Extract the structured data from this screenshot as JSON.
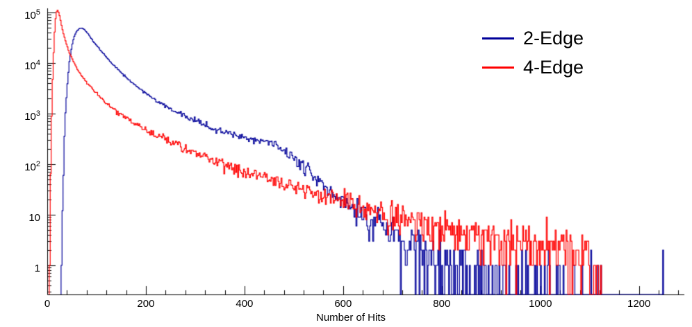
{
  "axes": {
    "xlabel": "Number of Hits",
    "x_ticks": [
      0,
      200,
      400,
      600,
      800,
      1000,
      1200
    ],
    "y_ticks": [
      {
        "base": "1",
        "exp": ""
      },
      {
        "base": "10",
        "exp": ""
      },
      {
        "base": "10",
        "exp": "2"
      },
      {
        "base": "10",
        "exp": "3"
      },
      {
        "base": "10",
        "exp": "4"
      },
      {
        "base": "10",
        "exp": "5"
      }
    ]
  },
  "chart_data": {
    "type": "line",
    "subtype": "step-histogram",
    "title": "",
    "xlabel": "Number of Hits",
    "ylabel": "",
    "yscale": "log",
    "xlim": [
      0,
      1292
    ],
    "ylim": [
      0.27,
      120000
    ],
    "grid": false,
    "legend_position": "top-right",
    "bin_width": 2,
    "noise_model": "poisson",
    "seed": 42,
    "series": [
      {
        "name": "2-Edge",
        "color": "#000099",
        "keypoints": [
          [
            28,
            0.3
          ],
          [
            32,
            30
          ],
          [
            36,
            700
          ],
          [
            40,
            3000
          ],
          [
            45,
            11000
          ],
          [
            50,
            22000
          ],
          [
            55,
            34000
          ],
          [
            60,
            43000
          ],
          [
            65,
            48000
          ],
          [
            70,
            49000
          ],
          [
            75,
            46000
          ],
          [
            80,
            41000
          ],
          [
            90,
            30000
          ],
          [
            100,
            22500
          ],
          [
            110,
            17000
          ],
          [
            120,
            13000
          ],
          [
            135,
            9000
          ],
          [
            150,
            6500
          ],
          [
            170,
            4300
          ],
          [
            200,
            2500
          ],
          [
            225,
            1700
          ],
          [
            250,
            1250
          ],
          [
            275,
            950
          ],
          [
            300,
            730
          ],
          [
            325,
            580
          ],
          [
            350,
            470
          ],
          [
            375,
            390
          ],
          [
            400,
            330
          ],
          [
            420,
            300
          ],
          [
            440,
            290
          ],
          [
            460,
            260
          ],
          [
            480,
            190
          ],
          [
            500,
            130
          ],
          [
            520,
            85
          ],
          [
            540,
            55
          ],
          [
            560,
            38
          ],
          [
            580,
            26
          ],
          [
            600,
            19
          ],
          [
            625,
            13
          ],
          [
            650,
            9
          ],
          [
            675,
            6.5
          ],
          [
            700,
            4.5
          ],
          [
            725,
            3
          ],
          [
            750,
            2.2
          ],
          [
            775,
            1.6
          ],
          [
            800,
            1.2
          ],
          [
            850,
            0.8
          ],
          [
            900,
            0.55
          ],
          [
            950,
            0.4
          ],
          [
            1000,
            0.3
          ],
          [
            1050,
            0.2
          ],
          [
            1100,
            0.12
          ],
          [
            1130,
            0.05
          ],
          [
            1160,
            0.012
          ],
          [
            1200,
            0.012
          ],
          [
            1230,
            0.03
          ],
          [
            1250,
            0.045
          ],
          [
            1270,
            0.045
          ],
          [
            1285,
            0.03
          ],
          [
            1292,
            0.01
          ]
        ]
      },
      {
        "name": "4-Edge",
        "color": "#ff0000",
        "keypoints": [
          [
            4,
            0.3
          ],
          [
            6,
            20
          ],
          [
            8,
            300
          ],
          [
            10,
            2500
          ],
          [
            12,
            9000
          ],
          [
            14,
            28000
          ],
          [
            16,
            60000
          ],
          [
            18,
            95000
          ],
          [
            20,
            112000
          ],
          [
            22,
            110000
          ],
          [
            24,
            95000
          ],
          [
            26,
            78000
          ],
          [
            28,
            62000
          ],
          [
            30,
            50000
          ],
          [
            35,
            32000
          ],
          [
            40,
            22000
          ],
          [
            45,
            16000
          ],
          [
            50,
            12500
          ],
          [
            60,
            8000
          ],
          [
            70,
            5600
          ],
          [
            80,
            4200
          ],
          [
            90,
            3200
          ],
          [
            100,
            2500
          ],
          [
            120,
            1600
          ],
          [
            140,
            1100
          ],
          [
            160,
            800
          ],
          [
            180,
            620
          ],
          [
            200,
            480
          ],
          [
            225,
            360
          ],
          [
            250,
            280
          ],
          [
            275,
            215
          ],
          [
            300,
            170
          ],
          [
            325,
            135
          ],
          [
            350,
            108
          ],
          [
            375,
            88
          ],
          [
            400,
            72
          ],
          [
            430,
            58
          ],
          [
            460,
            47
          ],
          [
            500,
            36
          ],
          [
            540,
            28
          ],
          [
            580,
            22
          ],
          [
            620,
            17
          ],
          [
            660,
            13
          ],
          [
            700,
            10
          ],
          [
            740,
            8
          ],
          [
            780,
            6.5
          ],
          [
            820,
            5.5
          ],
          [
            860,
            4.5
          ],
          [
            900,
            3.8
          ],
          [
            940,
            3.2
          ],
          [
            980,
            2.7
          ],
          [
            1020,
            2.2
          ],
          [
            1060,
            1.8
          ],
          [
            1100,
            1.4
          ],
          [
            1115,
            1
          ],
          [
            1125,
            0.5
          ],
          [
            1135,
            0.05
          ],
          [
            1150,
            0.01
          ],
          [
            1292,
            0.005
          ]
        ]
      }
    ]
  }
}
